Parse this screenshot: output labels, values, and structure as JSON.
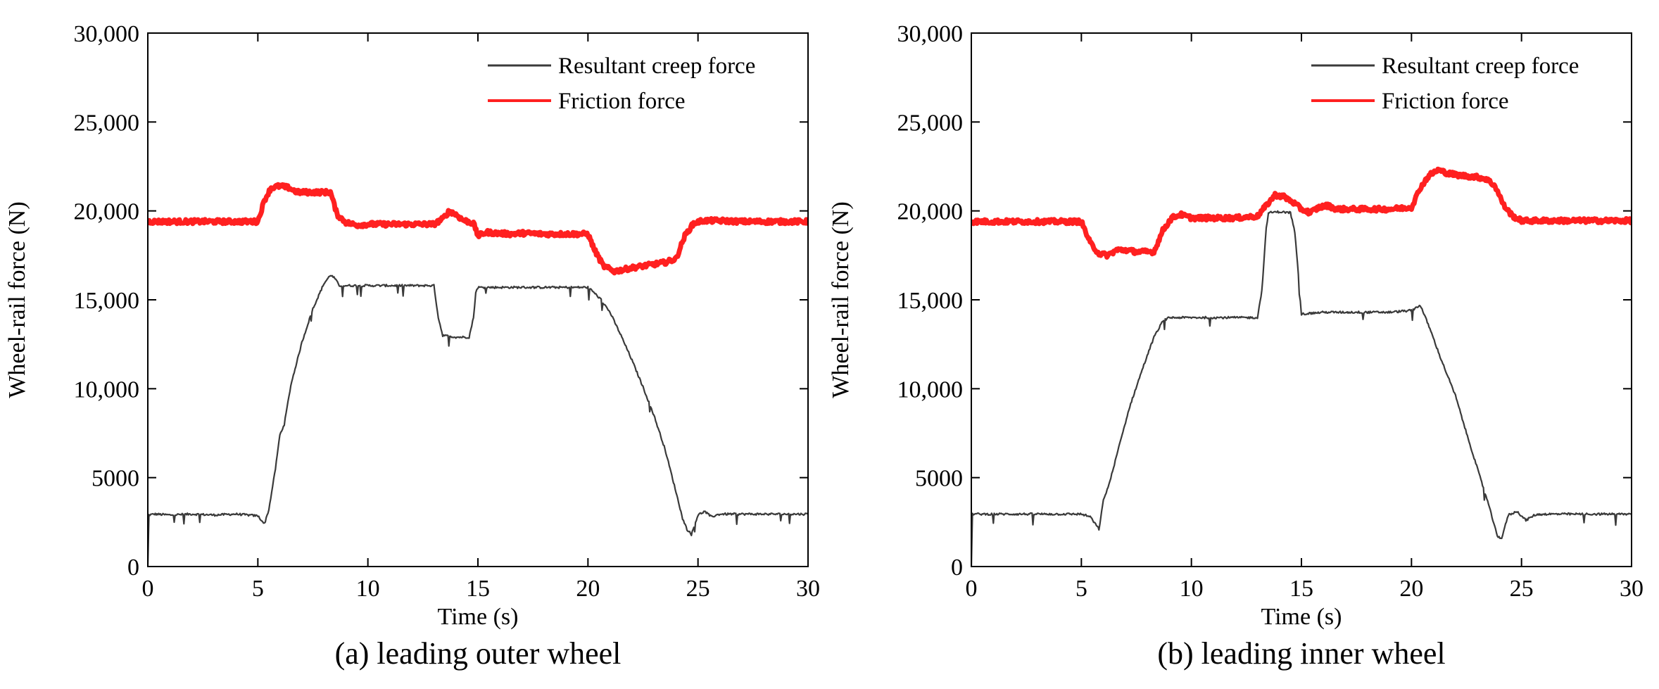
{
  "figure": {
    "colors": {
      "creep": "#3a3a3a",
      "friction": "#ff2020",
      "axis": "#000000",
      "background": "#ffffff"
    }
  },
  "chart_data": [
    {
      "type": "line",
      "caption": "(a) leading outer wheel",
      "xlabel": "Time (s)",
      "ylabel": "Wheel-rail force (N)",
      "xlim": [
        0,
        30
      ],
      "ylim": [
        0,
        30000
      ],
      "xticks": [
        0,
        5,
        10,
        15,
        20,
        25,
        30
      ],
      "xtick_labels": [
        "0",
        "5",
        "10",
        "15",
        "20",
        "25",
        "30"
      ],
      "yticks": [
        0,
        5000,
        10000,
        15000,
        20000,
        25000,
        30000
      ],
      "ytick_labels": [
        "0",
        "5000",
        "10,000",
        "15,000",
        "20,000",
        "25,000",
        "30,000"
      ],
      "legend_position": "top-right",
      "grid": false,
      "series": [
        {
          "name": "Resultant creep force",
          "color_key": "creep",
          "style": "thin",
          "x": [
            0,
            0.05,
            0.3,
            1,
            2,
            3,
            4,
            4.5,
            5.0,
            5.3,
            5.5,
            5.8,
            6.0,
            6.2,
            6.5,
            7.0,
            7.5,
            8.0,
            8.3,
            8.5,
            8.7,
            9,
            10,
            11,
            12,
            13.0,
            13.2,
            13.4,
            14,
            14.6,
            14.8,
            14.9,
            15,
            16,
            17,
            18,
            19,
            20.0,
            20.2,
            20.6,
            21,
            21.5,
            22,
            22.5,
            23,
            23.5,
            24.0,
            24.3,
            24.5,
            24.7,
            25,
            25.3,
            25.6,
            26,
            27,
            28,
            29,
            30
          ],
          "y": [
            0,
            2900,
            2950,
            2900,
            2950,
            2900,
            2950,
            2900,
            2850,
            2400,
            3200,
            5500,
            7400,
            8000,
            10200,
            12600,
            14500,
            15900,
            16400,
            16200,
            15800,
            15800,
            15800,
            15800,
            15800,
            15800,
            14000,
            13000,
            12900,
            12900,
            14000,
            15400,
            15700,
            15700,
            15700,
            15700,
            15700,
            15700,
            15500,
            15000,
            14300,
            13000,
            11600,
            10100,
            8500,
            6600,
            4200,
            2700,
            2100,
            1800,
            2900,
            3100,
            2800,
            2950,
            2950,
            2950,
            2950,
            2950
          ]
        },
        {
          "name": "Friction force",
          "color_key": "friction",
          "style": "thick",
          "x": [
            0,
            0.1,
            1,
            2,
            3,
            4,
            5.0,
            5.3,
            5.6,
            6.0,
            6.4,
            6.8,
            7.5,
            8.3,
            8.6,
            9.0,
            9.5,
            10,
            11,
            12,
            13.0,
            13.4,
            13.7,
            14.0,
            14.3,
            14.8,
            15.0,
            15.4,
            15.8,
            16.5,
            17,
            18,
            19,
            20.0,
            20.3,
            20.7,
            21.2,
            21.6,
            22,
            23,
            23.5,
            24.0,
            24.4,
            24.8,
            25.2,
            26,
            27,
            28,
            29,
            30
          ],
          "y": [
            19400,
            19400,
            19400,
            19400,
            19400,
            19400,
            19400,
            20600,
            21300,
            21400,
            21300,
            21050,
            21050,
            21050,
            19800,
            19350,
            19200,
            19250,
            19250,
            19250,
            19250,
            19550,
            20000,
            19800,
            19500,
            19300,
            18600,
            18800,
            18750,
            18700,
            18750,
            18700,
            18700,
            18700,
            17800,
            16900,
            16600,
            16700,
            16800,
            17000,
            17100,
            17300,
            18600,
            19300,
            19450,
            19450,
            19400,
            19400,
            19400,
            19400
          ]
        }
      ]
    },
    {
      "type": "line",
      "caption": "(b) leading inner wheel",
      "xlabel": "Time (s)",
      "ylabel": "Wheel-rail force (N)",
      "xlim": [
        0,
        30
      ],
      "ylim": [
        0,
        30000
      ],
      "xticks": [
        0,
        5,
        10,
        15,
        20,
        25,
        30
      ],
      "xtick_labels": [
        "0",
        "5",
        "10",
        "15",
        "20",
        "25",
        "30"
      ],
      "yticks": [
        0,
        5000,
        10000,
        15000,
        20000,
        25000,
        30000
      ],
      "ytick_labels": [
        "0",
        "5000",
        "10,000",
        "15,000",
        "20,000",
        "25,000",
        "30,000"
      ],
      "legend_position": "top-right",
      "grid": false,
      "series": [
        {
          "name": "Resultant creep force",
          "color_key": "creep",
          "style": "thin",
          "x": [
            0,
            0.05,
            0.3,
            1,
            2,
            3,
            4,
            5.0,
            5.4,
            5.8,
            6.0,
            6.3,
            6.7,
            7.2,
            7.8,
            8.3,
            8.7,
            9.0,
            10,
            11,
            12,
            13.0,
            13.2,
            13.4,
            13.5,
            14.0,
            14.5,
            14.7,
            14.9,
            15.0,
            16,
            17,
            18,
            19,
            20.0,
            20.4,
            20.8,
            21.3,
            22,
            22.5,
            23,
            23.5,
            23.9,
            24.1,
            24.4,
            24.8,
            25.2,
            25.6,
            26,
            27,
            28,
            29,
            30
          ],
          "y": [
            0,
            2950,
            2950,
            2950,
            2950,
            2950,
            2950,
            2950,
            2800,
            2100,
            3700,
            4800,
            6700,
            9000,
            11200,
            12900,
            13800,
            14000,
            14000,
            14000,
            14000,
            14000,
            15500,
            19000,
            19900,
            19950,
            19900,
            18800,
            15800,
            14200,
            14300,
            14300,
            14300,
            14300,
            14400,
            14700,
            13500,
            11800,
            9600,
            7500,
            5500,
            3500,
            1700,
            1600,
            2900,
            3100,
            2600,
            2900,
            2950,
            2950,
            2950,
            2950,
            2950
          ]
        },
        {
          "name": "Friction force",
          "color_key": "friction",
          "style": "thick",
          "x": [
            0,
            0.1,
            1,
            2,
            3,
            4,
            5.0,
            5.4,
            5.8,
            6.2,
            6.6,
            7.0,
            7.5,
            8.3,
            8.7,
            9.1,
            9.5,
            10,
            11,
            12,
            13.0,
            13.4,
            13.8,
            14.2,
            14.6,
            15.0,
            15.4,
            15.8,
            16.2,
            16.6,
            17,
            18,
            19,
            20.0,
            20.4,
            20.8,
            21.2,
            21.7,
            22.2,
            23,
            23.4,
            23.8,
            24.2,
            24.6,
            25.0,
            26,
            27,
            28,
            29,
            30
          ],
          "y": [
            19400,
            19400,
            19400,
            19400,
            19400,
            19400,
            19400,
            18200,
            17600,
            17500,
            17800,
            17800,
            17700,
            17700,
            18900,
            19600,
            19800,
            19600,
            19600,
            19600,
            19700,
            20300,
            20900,
            20800,
            20500,
            20100,
            19900,
            20200,
            20300,
            20100,
            20100,
            20100,
            20100,
            20200,
            21300,
            22000,
            22300,
            22100,
            22000,
            21900,
            21800,
            21400,
            20300,
            19700,
            19450,
            19450,
            19450,
            19450,
            19450,
            19450
          ]
        }
      ]
    }
  ]
}
